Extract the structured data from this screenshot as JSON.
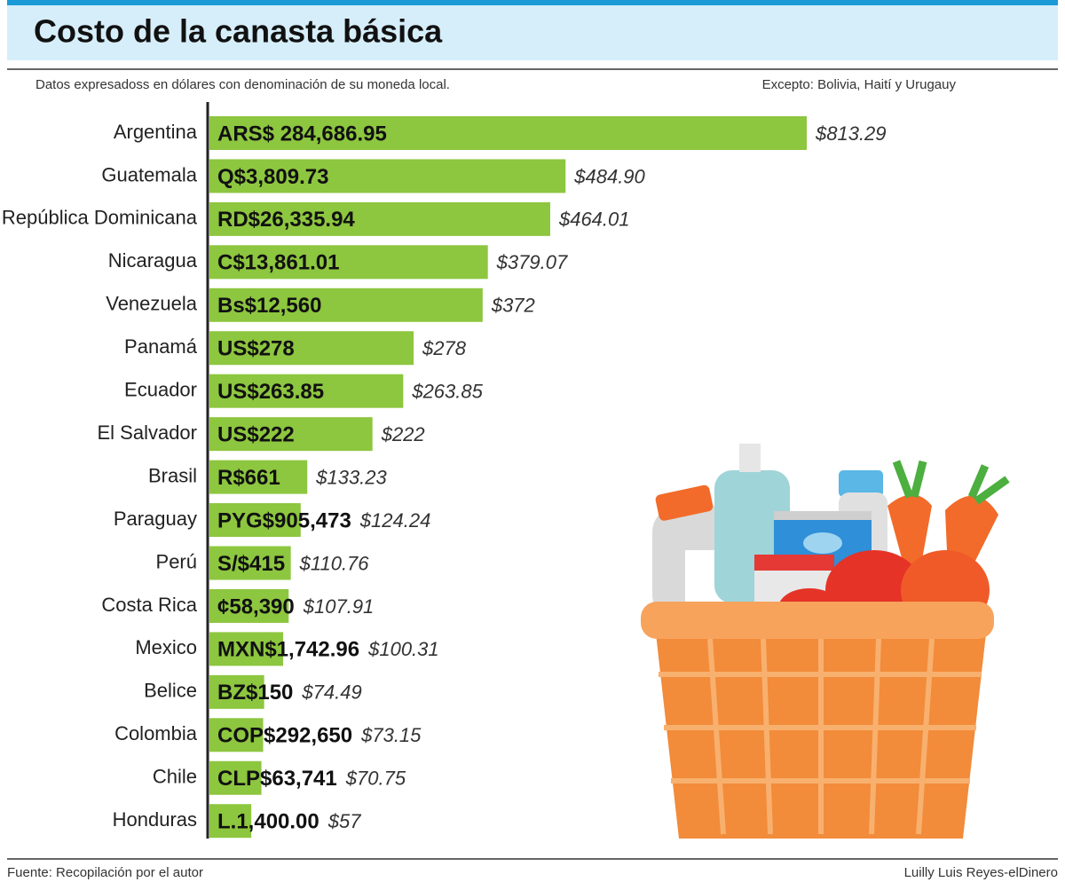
{
  "chart_data": {
    "type": "bar",
    "orientation": "horizontal",
    "title": "Costo de la canasta básica",
    "subtitle": "Datos expresadoss en dólares con denominación de su moneda local.",
    "note": "Excepto: Bolivia, Haití y Urugauy",
    "source": "Fuente: Recopilación por el autor",
    "credit": "Luilly Luis Reyes-elDinero",
    "color": "#8dc63f",
    "categories": [
      "Argentina",
      "Guatemala",
      "República Dominicana",
      "Nicaragua",
      "Venezuela",
      "Panamá",
      "Ecuador",
      "El Salvador",
      "Brasil",
      "Paraguay",
      "Perú",
      "Costa Rica",
      "Mexico",
      "Belice",
      "Colombia",
      "Chile",
      "Honduras"
    ],
    "values": [
      813.29,
      484.9,
      464.01,
      379.07,
      372,
      278,
      263.85,
      222,
      133.23,
      124.24,
      110.76,
      107.91,
      100.31,
      74.49,
      73.15,
      70.75,
      57
    ],
    "value_labels": [
      "$813.29",
      "$484.90",
      "$464.01",
      "$379.07",
      "$372",
      "$278",
      "$263.85",
      "$222",
      "$133.23",
      "$124.24",
      "$110.76",
      "$107.91",
      "$100.31",
      "$74.49",
      "$73.15",
      "$70.75",
      "$57"
    ],
    "local_labels": [
      "ARS$ 284,686.95",
      "Q$3,809.73",
      "RD$26,335.94",
      "C$13,861.01",
      "Bs$12,560",
      "US$278",
      "US$263.85",
      "US$222",
      "R$661",
      "PYG$905,473",
      "S/$415",
      "¢58,390",
      "MXN$1,742.96",
      "BZ$150",
      "COP$292,650",
      "CLP$63,741",
      "L.1,400.00"
    ]
  }
}
